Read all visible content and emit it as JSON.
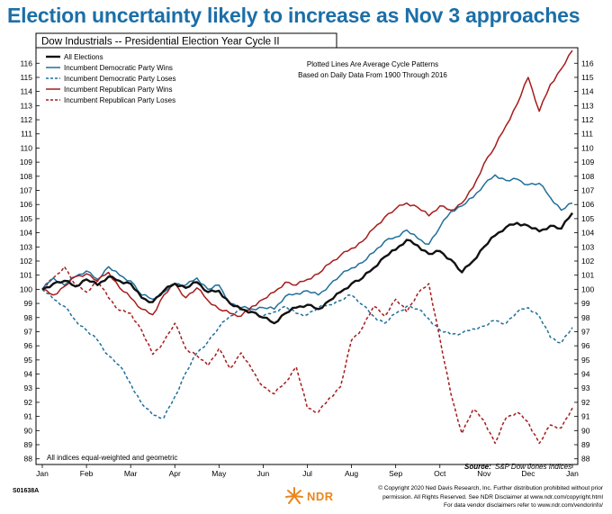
{
  "headline": "Election uncertainty likely to increase as Nov 3 approaches",
  "colors": {
    "headline": "#1b6fa8",
    "all": "#111111",
    "dem": "#1f6f9a",
    "rep": "#a61c1c",
    "accent_orange": "#e8871e"
  },
  "footer": {
    "code": "S01638A",
    "logo_text": "NDR",
    "copyright_line1": "© Copyright 2020 Ned Davis Research, Inc. Further distribution prohibited without prior",
    "copyright_line2": "permission. All Rights Reserved. See NDR Disclaimer at www.ndr.com/copyright.html",
    "copyright_line3": "For data vendor disclaimers refer to www.ndr.com/vendorinfo/"
  },
  "chart_data": {
    "type": "line",
    "title": "Dow Industrials -- Presidential Election Year Cycle II",
    "annotation_top": [
      "Plotted Lines Are Average Cycle Patterns",
      "Based on Daily Data From 1900 Through 2016"
    ],
    "note_bottom_left": "All indices equal-weighted and geometric",
    "source_label": "Source:",
    "source_text": "S&P Dow Jones Indices",
    "x_ticks": [
      "Jan",
      "Feb",
      "Mar",
      "Apr",
      "May",
      "Jun",
      "Jul",
      "Aug",
      "Sep",
      "Oct",
      "Nov",
      "Dec",
      "Jan"
    ],
    "y_ticks": [
      88,
      89,
      90,
      91,
      92,
      93,
      94,
      95,
      96,
      97,
      98,
      99,
      100,
      101,
      102,
      103,
      104,
      105,
      106,
      107,
      108,
      109,
      110,
      111,
      112,
      113,
      114,
      115,
      116
    ],
    "ylim": [
      87.6,
      117.1
    ],
    "grid": false,
    "legend_position": "top-left",
    "series": [
      {
        "name": "All Elections",
        "style": "solid",
        "color": "#111111",
        "x_month": [
          0,
          0.25,
          0.5,
          0.75,
          1.0,
          1.25,
          1.5,
          1.75,
          2.0,
          2.25,
          2.5,
          2.75,
          3.0,
          3.25,
          3.5,
          3.75,
          4.0,
          4.25,
          4.5,
          4.75,
          5.0,
          5.25,
          5.5,
          5.75,
          6.0,
          6.25,
          6.5,
          6.75,
          7.0,
          7.25,
          7.5,
          7.75,
          8.0,
          8.25,
          8.5,
          8.75,
          9.0,
          9.25,
          9.5,
          9.75,
          10.0,
          10.25,
          10.5,
          10.75,
          11.0,
          11.25,
          11.5,
          11.75,
          12.0
        ],
        "y": [
          100.0,
          100.4,
          100.6,
          100.2,
          100.7,
          100.3,
          100.9,
          100.6,
          100.4,
          99.4,
          99.1,
          99.9,
          100.4,
          100.1,
          100.5,
          99.8,
          99.9,
          99.0,
          98.6,
          98.4,
          98.0,
          97.6,
          98.3,
          98.7,
          98.9,
          98.6,
          99.2,
          99.8,
          100.4,
          100.8,
          101.5,
          102.3,
          102.8,
          103.5,
          103.1,
          102.5,
          102.7,
          102.1,
          101.2,
          102.0,
          103.0,
          103.8,
          104.4,
          104.7,
          104.5,
          104.1,
          104.5,
          104.3,
          105.4
        ]
      },
      {
        "name": "Incumbent Democratic Party Wins",
        "style": "solid",
        "color": "#1f6f9a",
        "x_month": [
          0,
          0.25,
          0.5,
          0.75,
          1.0,
          1.25,
          1.5,
          1.75,
          2.0,
          2.25,
          2.5,
          2.75,
          3.0,
          3.25,
          3.5,
          3.75,
          4.0,
          4.25,
          4.5,
          4.75,
          5.0,
          5.25,
          5.5,
          5.75,
          6.0,
          6.25,
          6.5,
          6.75,
          7.0,
          7.25,
          7.5,
          7.75,
          8.0,
          8.25,
          8.5,
          8.75,
          9.0,
          9.25,
          9.5,
          9.75,
          10.0,
          10.25,
          10.5,
          10.75,
          11.0,
          11.25,
          11.5,
          11.75,
          12.0
        ],
        "y": [
          100.0,
          100.8,
          100.3,
          100.9,
          101.3,
          100.7,
          101.6,
          101.0,
          100.6,
          99.6,
          99.3,
          99.8,
          100.4,
          100.3,
          100.8,
          100.0,
          100.3,
          99.0,
          98.7,
          98.6,
          98.7,
          98.6,
          99.5,
          99.7,
          99.9,
          99.6,
          100.3,
          101.0,
          101.5,
          101.9,
          102.6,
          103.4,
          103.7,
          104.2,
          103.6,
          103.2,
          104.4,
          105.5,
          105.9,
          106.5,
          107.4,
          108.1,
          107.7,
          107.8,
          107.4,
          107.5,
          106.5,
          105.6,
          106.1
        ]
      },
      {
        "name": "Incumbent Democratic Party Loses",
        "style": "dashed",
        "color": "#1f6f9a",
        "x_month": [
          0,
          0.25,
          0.5,
          0.75,
          1.0,
          1.25,
          1.5,
          1.75,
          2.0,
          2.25,
          2.5,
          2.75,
          3.0,
          3.25,
          3.5,
          3.75,
          4.0,
          4.25,
          4.5,
          4.75,
          5.0,
          5.25,
          5.5,
          5.75,
          6.0,
          6.25,
          6.5,
          6.75,
          7.0,
          7.25,
          7.5,
          7.75,
          8.0,
          8.25,
          8.5,
          8.75,
          9.0,
          9.25,
          9.5,
          9.75,
          10.0,
          10.25,
          10.5,
          10.75,
          11.0,
          11.25,
          11.5,
          11.75,
          12.0
        ],
        "y": [
          100.0,
          99.3,
          98.8,
          97.8,
          97.1,
          96.4,
          95.3,
          94.6,
          93.3,
          91.9,
          91.1,
          90.9,
          92.4,
          94.1,
          95.5,
          96.3,
          97.3,
          98.1,
          98.6,
          98.4,
          98.1,
          98.4,
          98.8,
          98.3,
          98.2,
          98.7,
          98.9,
          99.2,
          99.6,
          98.9,
          98.1,
          97.6,
          98.3,
          98.8,
          98.6,
          97.9,
          97.1,
          96.8,
          96.9,
          97.2,
          97.4,
          97.8,
          97.6,
          98.4,
          98.7,
          98.1,
          96.6,
          96.2,
          97.3
        ]
      },
      {
        "name": "Incumbent Republican Party Wins",
        "style": "solid",
        "color": "#a61c1c",
        "x_month": [
          0,
          0.25,
          0.5,
          0.75,
          1.0,
          1.25,
          1.5,
          1.75,
          2.0,
          2.25,
          2.5,
          2.75,
          3.0,
          3.25,
          3.5,
          3.75,
          4.0,
          4.25,
          4.5,
          4.75,
          5.0,
          5.25,
          5.5,
          5.75,
          6.0,
          6.25,
          6.5,
          6.75,
          7.0,
          7.25,
          7.5,
          7.75,
          8.0,
          8.25,
          8.5,
          8.75,
          9.0,
          9.25,
          9.5,
          9.75,
          10.0,
          10.25,
          10.5,
          10.75,
          11.0,
          11.25,
          11.5,
          11.75,
          12.0
        ],
        "y": [
          100.0,
          99.6,
          100.2,
          100.9,
          101.1,
          100.6,
          101.2,
          100.1,
          99.4,
          98.6,
          98.2,
          99.6,
          100.4,
          99.4,
          100.1,
          99.2,
          98.6,
          98.3,
          98.1,
          98.8,
          99.3,
          99.8,
          100.5,
          100.3,
          100.7,
          101.1,
          101.8,
          102.4,
          102.9,
          103.4,
          104.3,
          105.1,
          105.7,
          106.1,
          105.8,
          105.2,
          105.9,
          105.6,
          106.1,
          107.2,
          108.9,
          110.1,
          111.6,
          113.1,
          115.0,
          112.6,
          114.5,
          115.6,
          116.9
        ]
      },
      {
        "name": "Incumbent Republican Party Loses",
        "style": "dashed",
        "color": "#a61c1c",
        "x_month": [
          0,
          0.25,
          0.5,
          0.75,
          1.0,
          1.25,
          1.5,
          1.75,
          2.0,
          2.25,
          2.5,
          2.75,
          3.0,
          3.25,
          3.5,
          3.75,
          4.0,
          4.25,
          4.5,
          4.75,
          5.0,
          5.25,
          5.5,
          5.75,
          6.0,
          6.25,
          6.5,
          6.75,
          7.0,
          7.25,
          7.5,
          7.75,
          8.0,
          8.25,
          8.5,
          8.75,
          9.0,
          9.25,
          9.5,
          9.75,
          10.0,
          10.25,
          10.5,
          10.75,
          11.0,
          11.25,
          11.5,
          11.75,
          12.0
        ],
        "y": [
          100.0,
          100.8,
          101.6,
          100.3,
          99.8,
          100.6,
          99.4,
          98.5,
          98.3,
          97.1,
          95.4,
          96.3,
          97.6,
          95.8,
          95.3,
          94.6,
          95.8,
          94.4,
          95.5,
          94.3,
          93.1,
          92.6,
          93.4,
          94.5,
          91.6,
          91.3,
          92.3,
          93.1,
          96.4,
          97.3,
          98.8,
          98.1,
          99.3,
          98.4,
          99.7,
          100.4,
          96.5,
          92.6,
          89.8,
          91.5,
          90.7,
          89.1,
          90.9,
          91.3,
          90.6,
          89.1,
          90.4,
          90.2,
          91.6
        ]
      }
    ]
  }
}
